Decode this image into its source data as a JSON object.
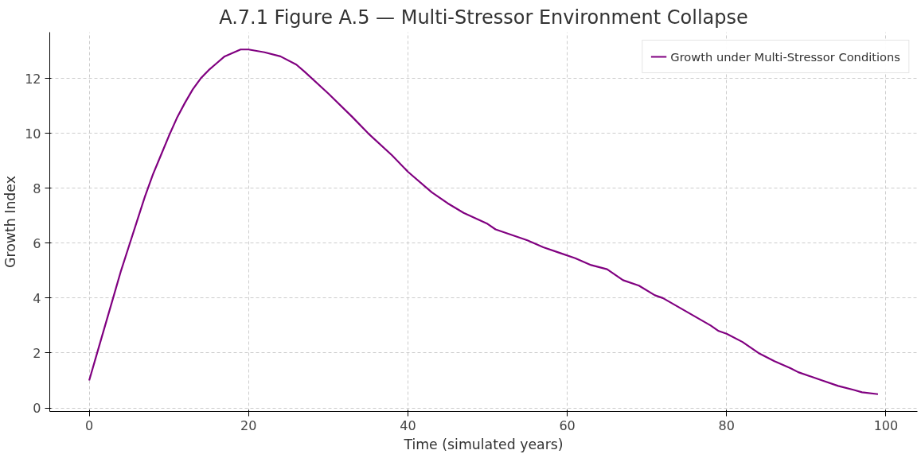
{
  "chart_data": {
    "type": "line",
    "title": "A.7.1 Figure A.5 — Multi-Stressor Environment Collapse",
    "xlabel": "Time (simulated years)",
    "ylabel": "Growth Index",
    "x": [
      0,
      1,
      2,
      3,
      4,
      5,
      6,
      7,
      8,
      9,
      10,
      11,
      12,
      13,
      14,
      15,
      16,
      17,
      19,
      20,
      22,
      24,
      26,
      27,
      30,
      33,
      35,
      38,
      40,
      43,
      45,
      47,
      50,
      51,
      55,
      57,
      59,
      61,
      63,
      65,
      67,
      69,
      71,
      72,
      75,
      78,
      79,
      80,
      82,
      84,
      86,
      88,
      89,
      92,
      94,
      96,
      97,
      99
    ],
    "series": [
      {
        "name": "Growth under Multi-Stressor Conditions",
        "color": "#800080",
        "values": [
          1.0,
          2.0,
          3.0,
          4.0,
          5.0,
          5.9,
          6.8,
          7.7,
          8.5,
          9.2,
          9.9,
          10.55,
          11.1,
          11.6,
          12.0,
          12.3,
          12.55,
          12.8,
          13.05,
          13.05,
          12.95,
          12.8,
          12.5,
          12.25,
          11.45,
          10.6,
          10.0,
          9.2,
          8.6,
          7.85,
          7.45,
          7.1,
          6.7,
          6.5,
          6.1,
          5.85,
          5.65,
          5.45,
          5.2,
          5.05,
          4.65,
          4.45,
          4.1,
          4.0,
          3.5,
          3.0,
          2.8,
          2.7,
          2.4,
          2.0,
          1.7,
          1.45,
          1.3,
          1.0,
          0.8,
          0.65,
          0.57,
          0.5
        ]
      }
    ],
    "xlim": [
      -4.95,
      103.95
    ],
    "ylim": [
      -0.13,
      13.68
    ],
    "xticks": [
      0,
      20,
      40,
      60,
      80,
      100
    ],
    "yticks": [
      0,
      2,
      4,
      6,
      8,
      10,
      12
    ],
    "grid": true,
    "legend": "top right",
    "line_style": "solid"
  }
}
